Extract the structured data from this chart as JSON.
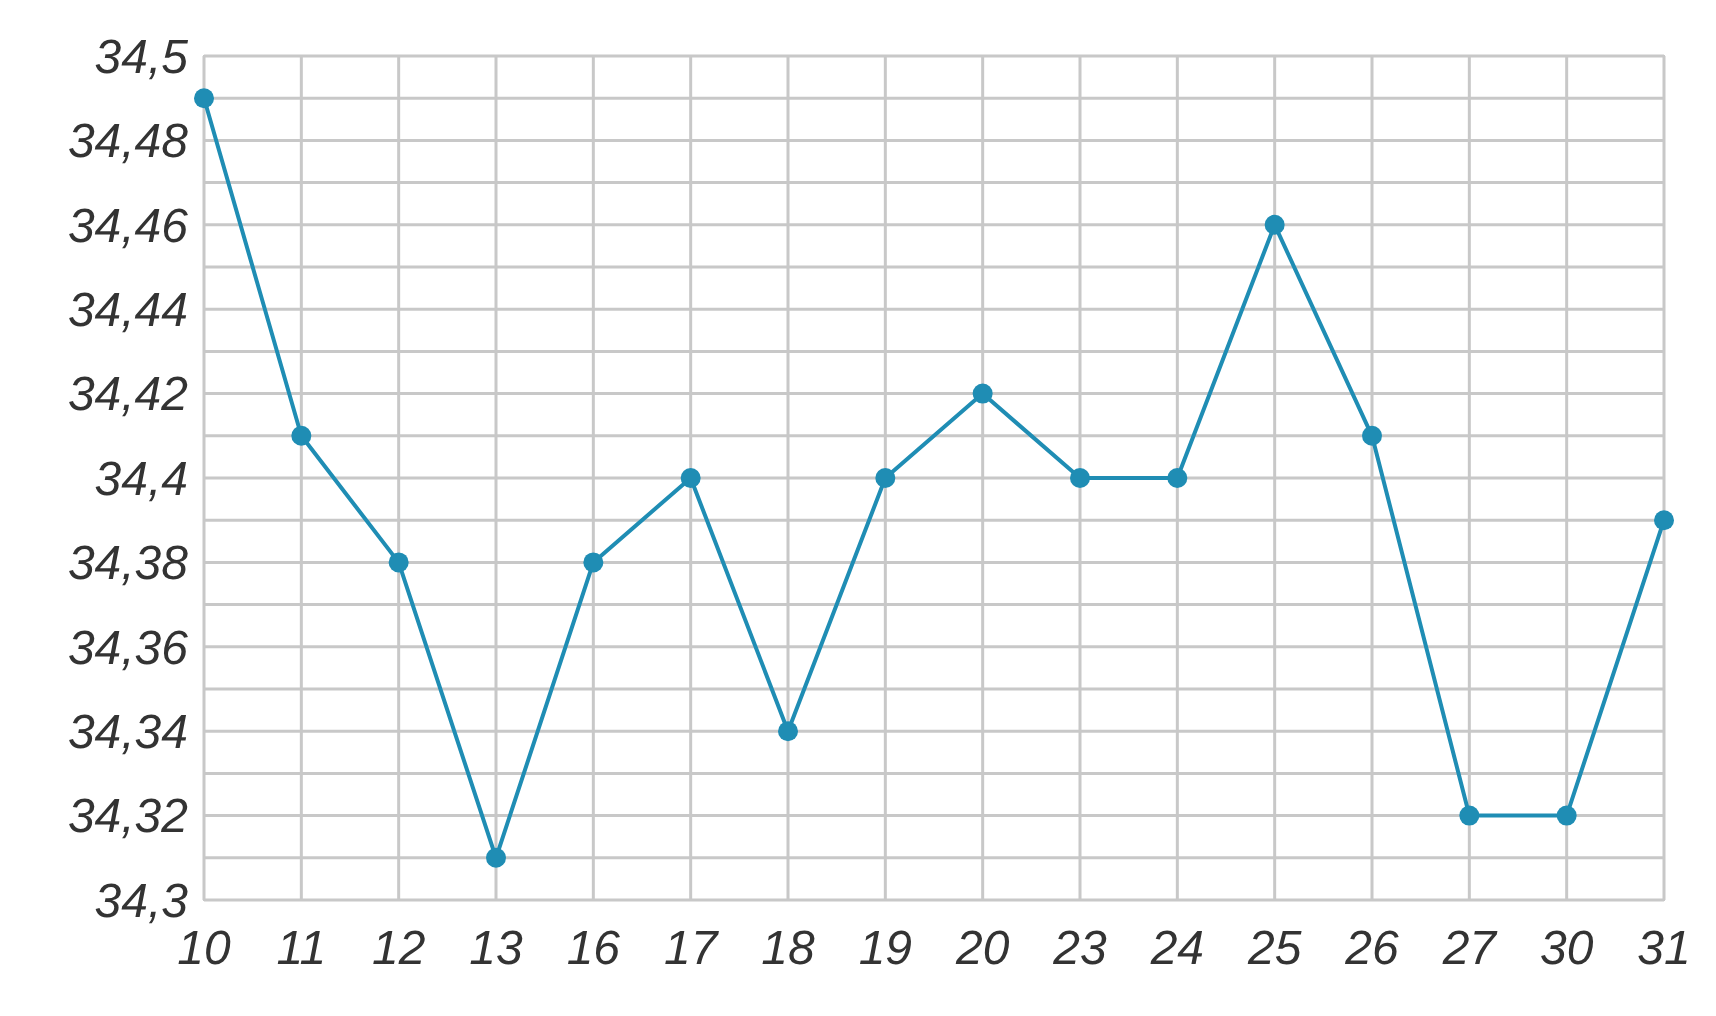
{
  "chart_data": {
    "type": "line",
    "categories": [
      "10",
      "11",
      "12",
      "13",
      "16",
      "17",
      "18",
      "19",
      "20",
      "23",
      "24",
      "25",
      "26",
      "27",
      "30",
      "31"
    ],
    "series": [
      {
        "color": "#1f8db4",
        "values": [
          34.49,
          34.41,
          34.38,
          34.31,
          34.38,
          34.4,
          34.34,
          34.4,
          34.42,
          34.4,
          34.4,
          34.46,
          34.41,
          34.32,
          34.32,
          34.39
        ]
      }
    ],
    "ylim": [
      34.3,
      34.5
    ],
    "yticks": [
      {
        "value": 34.3,
        "label": "34,3"
      },
      {
        "value": 34.31,
        "label": null
      },
      {
        "value": 34.32,
        "label": "34,32"
      },
      {
        "value": 34.33,
        "label": null
      },
      {
        "value": 34.34,
        "label": "34,34"
      },
      {
        "value": 34.35,
        "label": null
      },
      {
        "value": 34.36,
        "label": "34,36"
      },
      {
        "value": 34.37,
        "label": null
      },
      {
        "value": 34.38,
        "label": "34,38"
      },
      {
        "value": 34.39,
        "label": null
      },
      {
        "value": 34.4,
        "label": "34,4"
      },
      {
        "value": 34.41,
        "label": null
      },
      {
        "value": 34.42,
        "label": "34,42"
      },
      {
        "value": 34.43,
        "label": null
      },
      {
        "value": 34.44,
        "label": "34,44"
      },
      {
        "value": 34.45,
        "label": null
      },
      {
        "value": 34.46,
        "label": "34,46"
      },
      {
        "value": 34.47,
        "label": null
      },
      {
        "value": 34.48,
        "label": "34,48"
      },
      {
        "value": 34.49,
        "label": null
      },
      {
        "value": 34.5,
        "label": "34,5"
      }
    ],
    "grid": true,
    "marker": "circle",
    "line_style": "solid"
  }
}
